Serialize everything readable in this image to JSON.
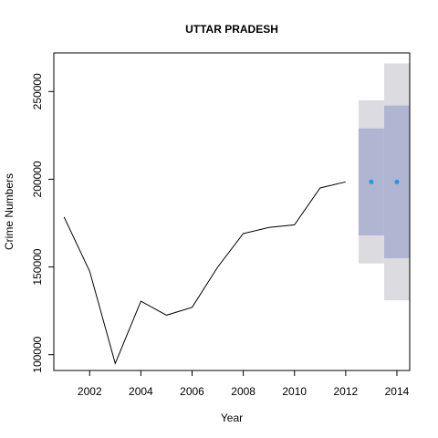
{
  "chart_data": {
    "type": "line",
    "title": "UTTAR PRADESH",
    "xlabel": "Year",
    "ylabel": "Crime Numbers",
    "xlim": [
      2000.6,
      2014.5
    ],
    "ylim": [
      91000,
      272000
    ],
    "x_ticks": [
      2002,
      2004,
      2006,
      2008,
      2010,
      2012,
      2014
    ],
    "y_ticks": [
      100000,
      150000,
      200000,
      250000
    ],
    "series": [
      {
        "x": [
          2001,
          2002,
          2003,
          2004,
          2005,
          2006,
          2007,
          2008,
          2009,
          2010,
          2011,
          2012
        ],
        "values": [
          178500,
          147500,
          95000,
          130500,
          122500,
          127000,
          150000,
          169000,
          172500,
          174000,
          195000,
          198500
        ]
      }
    ],
    "forecast": {
      "x": [
        2013,
        2014
      ],
      "point": [
        198500,
        198500
      ],
      "lo80": [
        168000,
        155000
      ],
      "hi80": [
        229000,
        242000
      ],
      "lo95": [
        152000,
        131000
      ],
      "hi95": [
        245000,
        266000
      ]
    },
    "colors": {
      "line": "#000000",
      "point": "#2297e6",
      "band80": "#b0b6d2",
      "band95": "#dbdbe0"
    },
    "grid": false
  }
}
